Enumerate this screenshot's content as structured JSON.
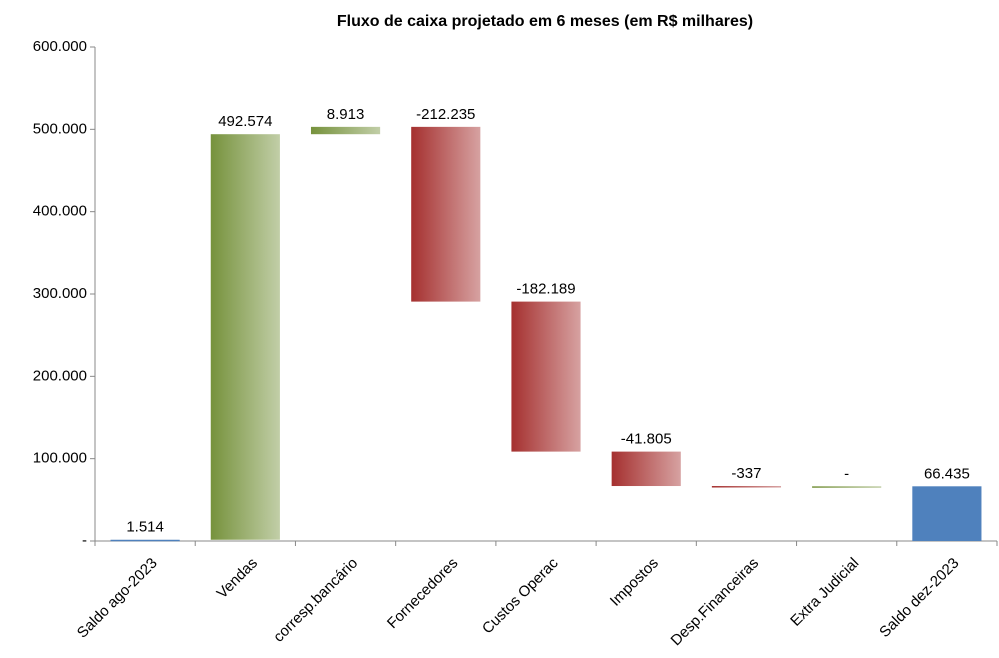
{
  "chart_data": {
    "type": "waterfall",
    "title": "Fluxo de caixa projetado em 6 meses (em  R$ milhares)",
    "categories": [
      "Saldo ago-2023",
      "Vendas",
      "corresp.bancário",
      "Fornecedores",
      "Custos Operac",
      "Impostos",
      "Desp.Financeiras",
      "Extra Judicial",
      "Saldo dez-2023"
    ],
    "values": [
      1514,
      492574,
      8913,
      -212235,
      -182189,
      -41805,
      -337,
      0,
      66435
    ],
    "value_labels": [
      "1.514",
      "492.574",
      "8.913",
      "-212.235",
      "-182.189",
      "-41.805",
      "-337",
      "-",
      "66.435"
    ],
    "measures": [
      "absolute",
      "relative",
      "relative",
      "relative",
      "relative",
      "relative",
      "relative",
      "relative",
      "total"
    ],
    "colors": {
      "absolute": "#4f81bd",
      "total": "#4f81bd",
      "increase": "#76923c",
      "decrease": "#a5302f"
    },
    "ylim": [
      0,
      600000
    ],
    "yticks": [
      {
        "value": 0,
        "label": "-"
      },
      {
        "value": 100000,
        "label": "100.000"
      },
      {
        "value": 200000,
        "label": "200.000"
      },
      {
        "value": 300000,
        "label": "300.000"
      },
      {
        "value": 400000,
        "label": "400.000"
      },
      {
        "value": 500000,
        "label": "500.000"
      },
      {
        "value": 600000,
        "label": "600.000"
      }
    ]
  }
}
